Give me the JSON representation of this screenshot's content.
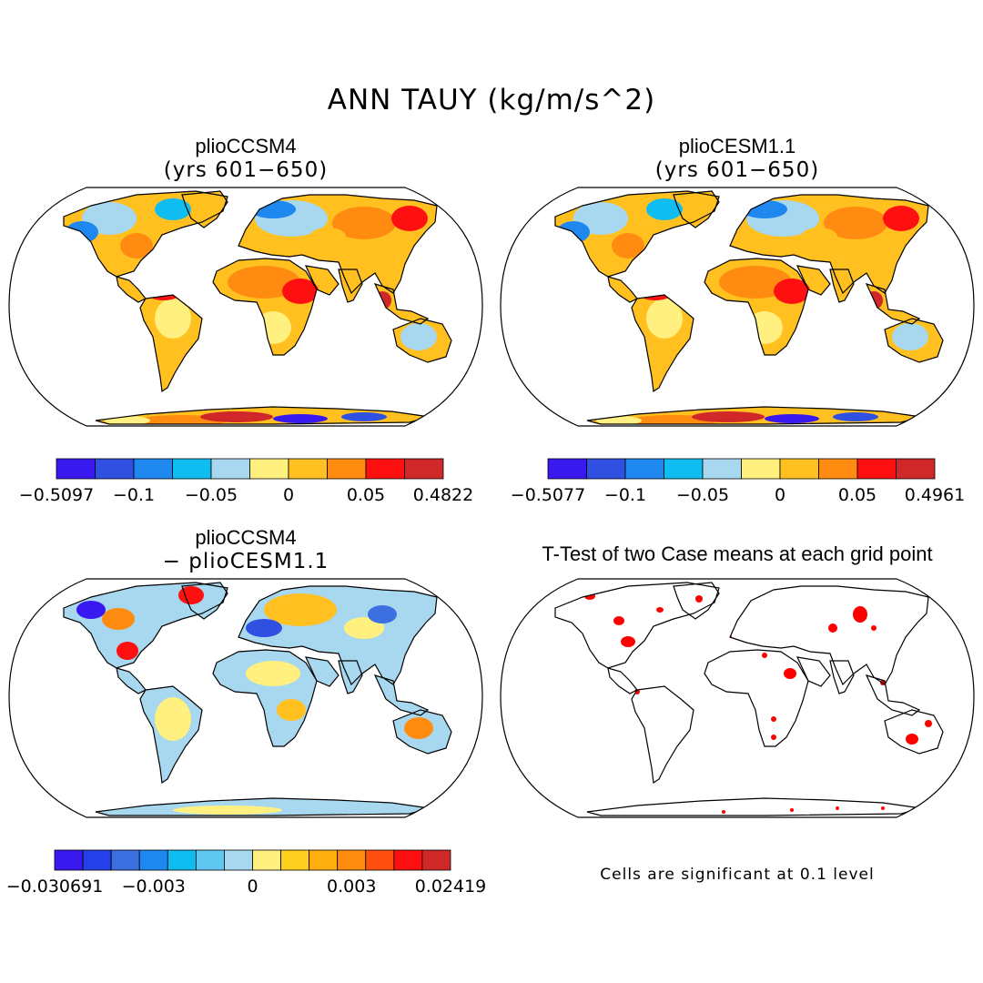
{
  "title": "ANN TAUY (kg/m/s^2)",
  "panels": [
    {
      "title": "plioCCSM4",
      "subtitle": "(yrs 601−650)"
    },
    {
      "title": "plioCESM1.1",
      "subtitle": "(yrs 601−650)"
    },
    {
      "title": "plioCCSM4",
      "subtitle": "− plioCESM1.1"
    },
    {
      "title": "T-Test of two Case means at each grid point",
      "subtitle": ""
    }
  ],
  "colorbars": [
    {
      "colors": [
        "#3a19f0",
        "#2f50e0",
        "#1f88f0",
        "#10bdf0",
        "#a8d8f0",
        "#fff080",
        "#ffc020",
        "#ff8c10",
        "#ff1010",
        "#d02828"
      ],
      "labels": [
        "−0.5097",
        "−0.1",
        "−0.05",
        "0",
        "0.05",
        "0.4822"
      ]
    },
    {
      "colors": [
        "#3a19f0",
        "#2f50e0",
        "#1f88f0",
        "#10bdf0",
        "#a8d8f0",
        "#fff080",
        "#ffc020",
        "#ff8c10",
        "#ff1010",
        "#d02828"
      ],
      "labels": [
        "−0.5077",
        "−0.1",
        "−0.05",
        "0",
        "0.05",
        "0.4961"
      ]
    },
    {
      "colors": [
        "#3a19f0",
        "#2540e8",
        "#3c70e0",
        "#1f88f0",
        "#10bdf0",
        "#60c8f0",
        "#a8d8f0",
        "#fff080",
        "#ffd020",
        "#ffb010",
        "#ff8c10",
        "#ff5010",
        "#ff1010",
        "#d02828"
      ],
      "labels": [
        "−0.030691",
        "−0.003",
        "0",
        "0.003",
        "0.02419"
      ]
    }
  ],
  "significance_note": "Cells are significant at 0.1 level",
  "style": {
    "land_outline": "#000000",
    "significant_color": "#ff0000"
  }
}
